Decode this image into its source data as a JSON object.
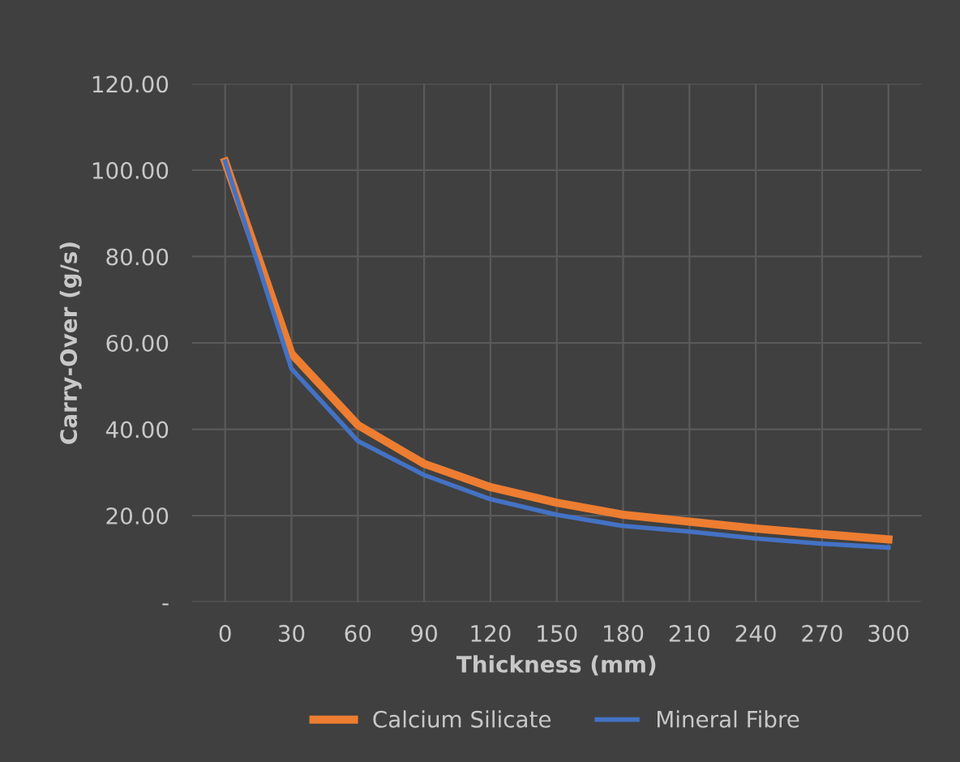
{
  "chart_data": {
    "type": "line",
    "xlabel": "Thickness (mm)",
    "ylabel": "Carry-Over (g/s)",
    "categories": [
      "0",
      "30",
      "60",
      "90",
      "120",
      "150",
      "180",
      "210",
      "240",
      "270",
      "300"
    ],
    "series": [
      {
        "name": "Calcium Silicate",
        "color": "#ed7d31",
        "values": [
          102,
          57.5,
          41,
          32,
          26.6,
          23,
          20.2,
          18.6,
          17,
          15.7,
          14.5
        ]
      },
      {
        "name": "Mineral Fibre",
        "color": "#4472c4",
        "values": [
          102,
          54,
          37.3,
          29.4,
          23.8,
          20.2,
          17.6,
          16.3,
          14.7,
          13.5,
          12.6
        ]
      }
    ],
    "ylim": [
      0,
      120
    ],
    "yticks": [
      {
        "value": 0,
        "label": "-"
      },
      {
        "value": 20,
        "label": "20.00"
      },
      {
        "value": 40,
        "label": "40.00"
      },
      {
        "value": 60,
        "label": "60.00"
      },
      {
        "value": 80,
        "label": "80.00"
      },
      {
        "value": 100,
        "label": "100.00"
      },
      {
        "value": 120,
        "label": "120.00"
      }
    ],
    "grid": true,
    "legend": "bottom",
    "marker": "none",
    "line_style": "solid"
  }
}
